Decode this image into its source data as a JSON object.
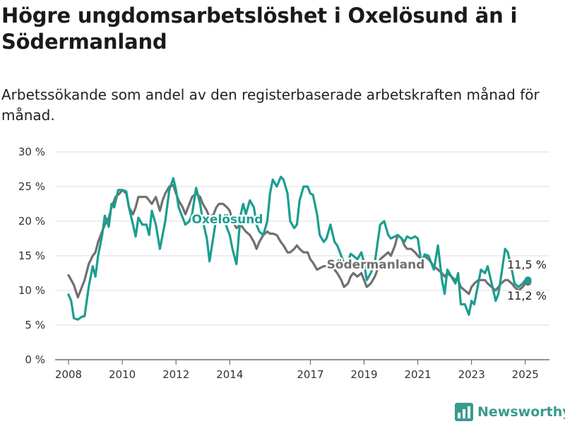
{
  "title": "Högre ungdomsarbetslöshet i Oxelösund än i Södermanland",
  "subtitle": "Arbetssökande som andel av den registerbaserade arbetskraften månad för månad.",
  "brand": {
    "name": "Newsworthy",
    "icon": "newsworthy-logo-icon"
  },
  "chart_data": {
    "type": "line",
    "title": "Högre ungdomsarbetslöshet i Oxelösund än i Södermanland",
    "subtitle": "Arbetssökande som andel av den registerbaserade arbetskraften månad för månad.",
    "xlabel": "",
    "ylabel": "",
    "ylim": [
      0,
      30
    ],
    "xlim": [
      2007.5,
      2025.9
    ],
    "y_ticks": [
      0,
      5,
      10,
      15,
      20,
      25,
      30
    ],
    "y_tick_labels": [
      "0 %",
      "5 %",
      "10 %",
      "15 %",
      "20 %",
      "25 %",
      "30 %"
    ],
    "x_ticks": [
      2008,
      2010,
      2012,
      2014,
      2017,
      2019,
      2021,
      2023,
      2025
    ],
    "x_tick_labels": [
      "2008",
      "2010",
      "2012",
      "2014",
      "2017",
      "2019",
      "2021",
      "2023",
      "2025"
    ],
    "grid": "horizontal",
    "legend": "inline labels",
    "series": [
      {
        "name": "Oxelösund",
        "color": "#1a9e8f",
        "end_label": "11,5 %",
        "points": [
          [
            2008.0,
            9.4
          ],
          [
            2008.1,
            8.5
          ],
          [
            2008.2,
            6.0
          ],
          [
            2008.35,
            5.8
          ],
          [
            2008.5,
            6.2
          ],
          [
            2008.6,
            6.3
          ],
          [
            2008.75,
            10.5
          ],
          [
            2008.9,
            13.5
          ],
          [
            2009.0,
            12.0
          ],
          [
            2009.1,
            15.0
          ],
          [
            2009.25,
            18.0
          ],
          [
            2009.35,
            20.8
          ],
          [
            2009.5,
            19.2
          ],
          [
            2009.6,
            22.5
          ],
          [
            2009.7,
            22.0
          ],
          [
            2009.85,
            24.5
          ],
          [
            2010.0,
            24.5
          ],
          [
            2010.15,
            24.3
          ],
          [
            2010.25,
            22.0
          ],
          [
            2010.4,
            19.5
          ],
          [
            2010.5,
            17.8
          ],
          [
            2010.6,
            20.5
          ],
          [
            2010.75,
            19.5
          ],
          [
            2010.9,
            19.5
          ],
          [
            2011.0,
            18.0
          ],
          [
            2011.1,
            21.5
          ],
          [
            2011.25,
            19.5
          ],
          [
            2011.4,
            16.0
          ],
          [
            2011.5,
            18.0
          ],
          [
            2011.6,
            20.0
          ],
          [
            2011.75,
            24.5
          ],
          [
            2011.9,
            26.2
          ],
          [
            2012.0,
            24.5
          ],
          [
            2012.1,
            22.0
          ],
          [
            2012.25,
            20.5
          ],
          [
            2012.35,
            19.5
          ],
          [
            2012.5,
            20.0
          ],
          [
            2012.6,
            21.0
          ],
          [
            2012.75,
            24.8
          ],
          [
            2012.9,
            22.5
          ],
          [
            2013.0,
            20.0
          ],
          [
            2013.15,
            17.5
          ],
          [
            2013.25,
            14.2
          ],
          [
            2013.4,
            18.0
          ],
          [
            2013.5,
            20.5
          ],
          [
            2013.6,
            21.0
          ],
          [
            2013.75,
            20.8
          ],
          [
            2013.9,
            19.0
          ],
          [
            2014.0,
            18.0
          ],
          [
            2014.1,
            16.0
          ],
          [
            2014.25,
            13.8
          ],
          [
            2014.4,
            20.8
          ],
          [
            2014.5,
            22.5
          ],
          [
            2014.6,
            21.0
          ],
          [
            2014.75,
            23.0
          ],
          [
            2014.9,
            22.0
          ],
          [
            2015.0,
            19.5
          ],
          [
            2015.1,
            18.5
          ],
          [
            2015.25,
            18.0
          ],
          [
            2015.4,
            20.0
          ],
          [
            2015.5,
            24.0
          ],
          [
            2015.6,
            26.0
          ],
          [
            2015.75,
            25.0
          ],
          [
            2015.9,
            26.4
          ],
          [
            2016.0,
            26.0
          ],
          [
            2016.15,
            24.0
          ],
          [
            2016.25,
            20.0
          ],
          [
            2016.4,
            19.0
          ],
          [
            2016.5,
            19.5
          ],
          [
            2016.6,
            23.0
          ],
          [
            2016.75,
            25.0
          ],
          [
            2016.9,
            25.0
          ],
          [
            2017.0,
            24.0
          ],
          [
            2017.1,
            23.8
          ],
          [
            2017.25,
            21.0
          ],
          [
            2017.35,
            18.0
          ],
          [
            2017.5,
            17.0
          ],
          [
            2017.6,
            17.5
          ],
          [
            2017.75,
            19.5
          ],
          [
            2017.9,
            17.0
          ],
          [
            2018.0,
            16.5
          ],
          [
            2018.15,
            15.0
          ],
          [
            2018.25,
            14.0
          ],
          [
            2018.4,
            14.0
          ],
          [
            2018.5,
            15.3
          ],
          [
            2018.6,
            15.0
          ],
          [
            2018.75,
            14.5
          ],
          [
            2018.9,
            15.5
          ],
          [
            2019.0,
            14.0
          ],
          [
            2019.1,
            11.5
          ],
          [
            2019.25,
            12.5
          ],
          [
            2019.4,
            14.0
          ],
          [
            2019.5,
            16.8
          ],
          [
            2019.6,
            19.5
          ],
          [
            2019.75,
            20.0
          ],
          [
            2019.9,
            18.0
          ],
          [
            2020.0,
            17.5
          ],
          [
            2020.15,
            17.8
          ],
          [
            2020.25,
            18.0
          ],
          [
            2020.4,
            17.5
          ],
          [
            2020.5,
            17.0
          ],
          [
            2020.6,
            17.8
          ],
          [
            2020.75,
            17.5
          ],
          [
            2020.9,
            17.8
          ],
          [
            2021.0,
            17.5
          ],
          [
            2021.15,
            13.5
          ],
          [
            2021.25,
            15.2
          ],
          [
            2021.4,
            15.0
          ],
          [
            2021.5,
            14.0
          ],
          [
            2021.6,
            13.0
          ],
          [
            2021.75,
            16.5
          ],
          [
            2021.9,
            11.5
          ],
          [
            2022.0,
            9.5
          ],
          [
            2022.1,
            13.0
          ],
          [
            2022.25,
            12.0
          ],
          [
            2022.4,
            11.0
          ],
          [
            2022.5,
            12.5
          ],
          [
            2022.6,
            8.0
          ],
          [
            2022.75,
            8.0
          ],
          [
            2022.9,
            6.5
          ],
          [
            2023.0,
            8.5
          ],
          [
            2023.1,
            8.0
          ],
          [
            2023.25,
            11.0
          ],
          [
            2023.35,
            13.0
          ],
          [
            2023.5,
            12.5
          ],
          [
            2023.6,
            13.5
          ],
          [
            2023.75,
            11.0
          ],
          [
            2023.9,
            8.5
          ],
          [
            2024.0,
            9.5
          ],
          [
            2024.1,
            12.0
          ],
          [
            2024.25,
            16.0
          ],
          [
            2024.35,
            15.5
          ],
          [
            2024.5,
            13.0
          ],
          [
            2024.6,
            11.0
          ],
          [
            2024.75,
            10.5
          ],
          [
            2024.9,
            11.0
          ],
          [
            2025.0,
            11.5
          ],
          [
            2025.1,
            11.5
          ]
        ]
      },
      {
        "name": "Södermanland",
        "color": "#707070",
        "end_label": "11,2 %",
        "points": [
          [
            2008.0,
            12.2
          ],
          [
            2008.1,
            11.5
          ],
          [
            2008.2,
            10.8
          ],
          [
            2008.35,
            9.0
          ],
          [
            2008.5,
            10.5
          ],
          [
            2008.6,
            11.5
          ],
          [
            2008.75,
            13.8
          ],
          [
            2008.9,
            15.0
          ],
          [
            2009.0,
            15.5
          ],
          [
            2009.1,
            17.0
          ],
          [
            2009.25,
            18.5
          ],
          [
            2009.35,
            19.5
          ],
          [
            2009.5,
            20.5
          ],
          [
            2009.6,
            22.0
          ],
          [
            2009.75,
            23.5
          ],
          [
            2009.9,
            24.0
          ],
          [
            2010.0,
            24.5
          ],
          [
            2010.15,
            24.0
          ],
          [
            2010.25,
            22.0
          ],
          [
            2010.4,
            21.0
          ],
          [
            2010.5,
            22.0
          ],
          [
            2010.6,
            23.5
          ],
          [
            2010.75,
            23.5
          ],
          [
            2010.9,
            23.5
          ],
          [
            2011.0,
            23.0
          ],
          [
            2011.1,
            22.5
          ],
          [
            2011.25,
            23.5
          ],
          [
            2011.4,
            21.5
          ],
          [
            2011.5,
            23.0
          ],
          [
            2011.6,
            24.0
          ],
          [
            2011.75,
            25.0
          ],
          [
            2011.9,
            25.2
          ],
          [
            2012.0,
            24.0
          ],
          [
            2012.1,
            23.0
          ],
          [
            2012.25,
            22.0
          ],
          [
            2012.35,
            21.0
          ],
          [
            2012.5,
            22.5
          ],
          [
            2012.6,
            23.5
          ],
          [
            2012.75,
            24.0
          ],
          [
            2012.9,
            23.5
          ],
          [
            2013.0,
            22.5
          ],
          [
            2013.15,
            21.5
          ],
          [
            2013.25,
            20.5
          ],
          [
            2013.4,
            21.0
          ],
          [
            2013.5,
            22.0
          ],
          [
            2013.6,
            22.5
          ],
          [
            2013.75,
            22.5
          ],
          [
            2013.9,
            22.0
          ],
          [
            2014.0,
            21.5
          ],
          [
            2014.1,
            20.0
          ],
          [
            2014.25,
            19.0
          ],
          [
            2014.4,
            19.5
          ],
          [
            2014.5,
            19.0
          ],
          [
            2014.6,
            18.5
          ],
          [
            2014.75,
            18.0
          ],
          [
            2014.9,
            17.0
          ],
          [
            2015.0,
            16.0
          ],
          [
            2015.1,
            17.0
          ],
          [
            2015.25,
            18.0
          ],
          [
            2015.4,
            18.5
          ],
          [
            2015.5,
            18.2
          ],
          [
            2015.6,
            18.2
          ],
          [
            2015.75,
            18.0
          ],
          [
            2015.9,
            17.0
          ],
          [
            2016.0,
            16.5
          ],
          [
            2016.15,
            15.5
          ],
          [
            2016.25,
            15.5
          ],
          [
            2016.4,
            16.0
          ],
          [
            2016.5,
            16.5
          ],
          [
            2016.6,
            16.0
          ],
          [
            2016.75,
            15.5
          ],
          [
            2016.9,
            15.5
          ],
          [
            2017.0,
            14.5
          ],
          [
            2017.1,
            14.0
          ],
          [
            2017.25,
            13.0
          ],
          [
            2017.35,
            13.2
          ],
          [
            2017.5,
            13.5
          ],
          [
            2017.6,
            13.5
          ],
          [
            2017.75,
            13.5
          ],
          [
            2017.9,
            13.0
          ],
          [
            2018.0,
            12.5
          ],
          [
            2018.15,
            11.5
          ],
          [
            2018.25,
            10.5
          ],
          [
            2018.4,
            11.0
          ],
          [
            2018.5,
            12.0
          ],
          [
            2018.6,
            12.5
          ],
          [
            2018.75,
            12.0
          ],
          [
            2018.9,
            12.5
          ],
          [
            2019.0,
            11.5
          ],
          [
            2019.1,
            10.5
          ],
          [
            2019.25,
            11.0
          ],
          [
            2019.4,
            12.0
          ],
          [
            2019.5,
            13.0
          ],
          [
            2019.6,
            14.5
          ],
          [
            2019.75,
            15.0
          ],
          [
            2019.9,
            15.5
          ],
          [
            2020.0,
            15.0
          ],
          [
            2020.15,
            16.5
          ],
          [
            2020.25,
            18.0
          ],
          [
            2020.4,
            17.5
          ],
          [
            2020.5,
            16.5
          ],
          [
            2020.6,
            16.0
          ],
          [
            2020.75,
            16.0
          ],
          [
            2020.9,
            15.5
          ],
          [
            2021.0,
            15.0
          ],
          [
            2021.15,
            14.5
          ],
          [
            2021.25,
            15.0
          ],
          [
            2021.4,
            14.5
          ],
          [
            2021.5,
            14.0
          ],
          [
            2021.6,
            13.5
          ],
          [
            2021.75,
            13.0
          ],
          [
            2021.9,
            12.5
          ],
          [
            2022.0,
            12.0
          ],
          [
            2022.1,
            12.5
          ],
          [
            2022.25,
            12.0
          ],
          [
            2022.4,
            11.5
          ],
          [
            2022.5,
            11.5
          ],
          [
            2022.6,
            10.5
          ],
          [
            2022.75,
            10.0
          ],
          [
            2022.9,
            9.5
          ],
          [
            2023.0,
            10.5
          ],
          [
            2023.1,
            11.0
          ],
          [
            2023.25,
            11.5
          ],
          [
            2023.35,
            11.5
          ],
          [
            2023.5,
            11.5
          ],
          [
            2023.6,
            11.0
          ],
          [
            2023.75,
            10.5
          ],
          [
            2023.9,
            10.0
          ],
          [
            2024.0,
            10.5
          ],
          [
            2024.1,
            11.0
          ],
          [
            2024.25,
            11.5
          ],
          [
            2024.35,
            11.5
          ],
          [
            2024.5,
            11.0
          ],
          [
            2024.6,
            10.5
          ],
          [
            2024.75,
            10.0
          ],
          [
            2024.9,
            10.5
          ],
          [
            2025.0,
            11.0
          ],
          [
            2025.1,
            11.2
          ]
        ]
      }
    ]
  }
}
